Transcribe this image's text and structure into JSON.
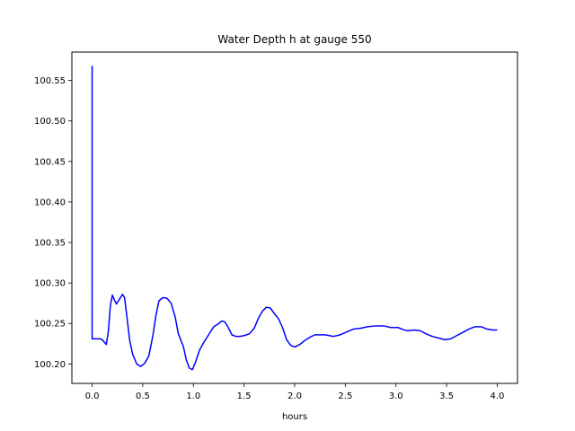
{
  "chart_data": {
    "type": "line",
    "title": "Water Depth h at gauge 550",
    "xlabel": "hours",
    "ylabel": "",
    "xlim": [
      -0.2,
      4.2
    ],
    "ylim": [
      100.176,
      100.585
    ],
    "xticks": [
      0.0,
      0.5,
      1.0,
      1.5,
      2.0,
      2.5,
      3.0,
      3.5,
      4.0
    ],
    "xtick_labels": [
      "0.0",
      "0.5",
      "1.0",
      "1.5",
      "2.0",
      "2.5",
      "3.0",
      "3.5",
      "4.0"
    ],
    "yticks": [
      100.2,
      100.25,
      100.3,
      100.35,
      100.4,
      100.45,
      100.5,
      100.55
    ],
    "ytick_labels": [
      "100.20",
      "100.25",
      "100.30",
      "100.35",
      "100.40",
      "100.45",
      "100.50",
      "100.55"
    ],
    "grid": false,
    "line_color": "#0000ff",
    "series": [
      {
        "name": "",
        "points": [
          [
            0.0,
            100.568
          ],
          [
            0.0,
            100.231
          ],
          [
            0.05,
            100.231
          ],
          [
            0.08,
            100.231
          ],
          [
            0.1,
            100.23
          ],
          [
            0.12,
            100.227
          ],
          [
            0.14,
            100.224
          ],
          [
            0.16,
            100.24
          ],
          [
            0.18,
            100.272
          ],
          [
            0.2,
            100.285
          ],
          [
            0.22,
            100.279
          ],
          [
            0.24,
            100.274
          ],
          [
            0.27,
            100.28
          ],
          [
            0.3,
            100.286
          ],
          [
            0.32,
            100.282
          ],
          [
            0.34,
            100.262
          ],
          [
            0.37,
            100.23
          ],
          [
            0.4,
            100.212
          ],
          [
            0.44,
            100.2
          ],
          [
            0.48,
            100.197
          ],
          [
            0.52,
            100.201
          ],
          [
            0.56,
            100.21
          ],
          [
            0.6,
            100.235
          ],
          [
            0.63,
            100.26
          ],
          [
            0.66,
            100.278
          ],
          [
            0.7,
            100.282
          ],
          [
            0.74,
            100.281
          ],
          [
            0.78,
            100.275
          ],
          [
            0.82,
            100.258
          ],
          [
            0.85,
            100.238
          ],
          [
            0.88,
            100.228
          ],
          [
            0.9,
            100.222
          ],
          [
            0.93,
            100.205
          ],
          [
            0.96,
            100.195
          ],
          [
            0.99,
            100.193
          ],
          [
            1.02,
            100.202
          ],
          [
            1.06,
            100.217
          ],
          [
            1.1,
            100.226
          ],
          [
            1.15,
            100.236
          ],
          [
            1.2,
            100.246
          ],
          [
            1.24,
            100.249
          ],
          [
            1.28,
            100.253
          ],
          [
            1.31,
            100.252
          ],
          [
            1.34,
            100.246
          ],
          [
            1.38,
            100.236
          ],
          [
            1.42,
            100.234
          ],
          [
            1.46,
            100.234
          ],
          [
            1.5,
            100.235
          ],
          [
            1.55,
            100.237
          ],
          [
            1.6,
            100.244
          ],
          [
            1.64,
            100.256
          ],
          [
            1.68,
            100.265
          ],
          [
            1.72,
            100.27
          ],
          [
            1.76,
            100.269
          ],
          [
            1.8,
            100.262
          ],
          [
            1.84,
            100.256
          ],
          [
            1.88,
            100.245
          ],
          [
            1.92,
            100.23
          ],
          [
            1.96,
            100.223
          ],
          [
            2.0,
            100.221
          ],
          [
            2.05,
            100.224
          ],
          [
            2.1,
            100.229
          ],
          [
            2.15,
            100.233
          ],
          [
            2.2,
            100.236
          ],
          [
            2.3,
            100.236
          ],
          [
            2.38,
            100.234
          ],
          [
            2.45,
            100.236
          ],
          [
            2.52,
            100.24
          ],
          [
            2.58,
            100.243
          ],
          [
            2.65,
            100.244
          ],
          [
            2.72,
            100.246
          ],
          [
            2.8,
            100.247
          ],
          [
            2.88,
            100.247
          ],
          [
            2.95,
            100.245
          ],
          [
            3.02,
            100.245
          ],
          [
            3.08,
            100.242
          ],
          [
            3.12,
            100.241
          ],
          [
            3.18,
            100.242
          ],
          [
            3.24,
            100.241
          ],
          [
            3.3,
            100.237
          ],
          [
            3.36,
            100.234
          ],
          [
            3.42,
            100.232
          ],
          [
            3.48,
            100.23
          ],
          [
            3.54,
            100.231
          ],
          [
            3.6,
            100.235
          ],
          [
            3.66,
            100.239
          ],
          [
            3.72,
            100.243
          ],
          [
            3.78,
            100.246
          ],
          [
            3.84,
            100.246
          ],
          [
            3.9,
            100.243
          ],
          [
            3.95,
            100.242
          ],
          [
            4.0,
            100.242
          ]
        ]
      }
    ]
  }
}
